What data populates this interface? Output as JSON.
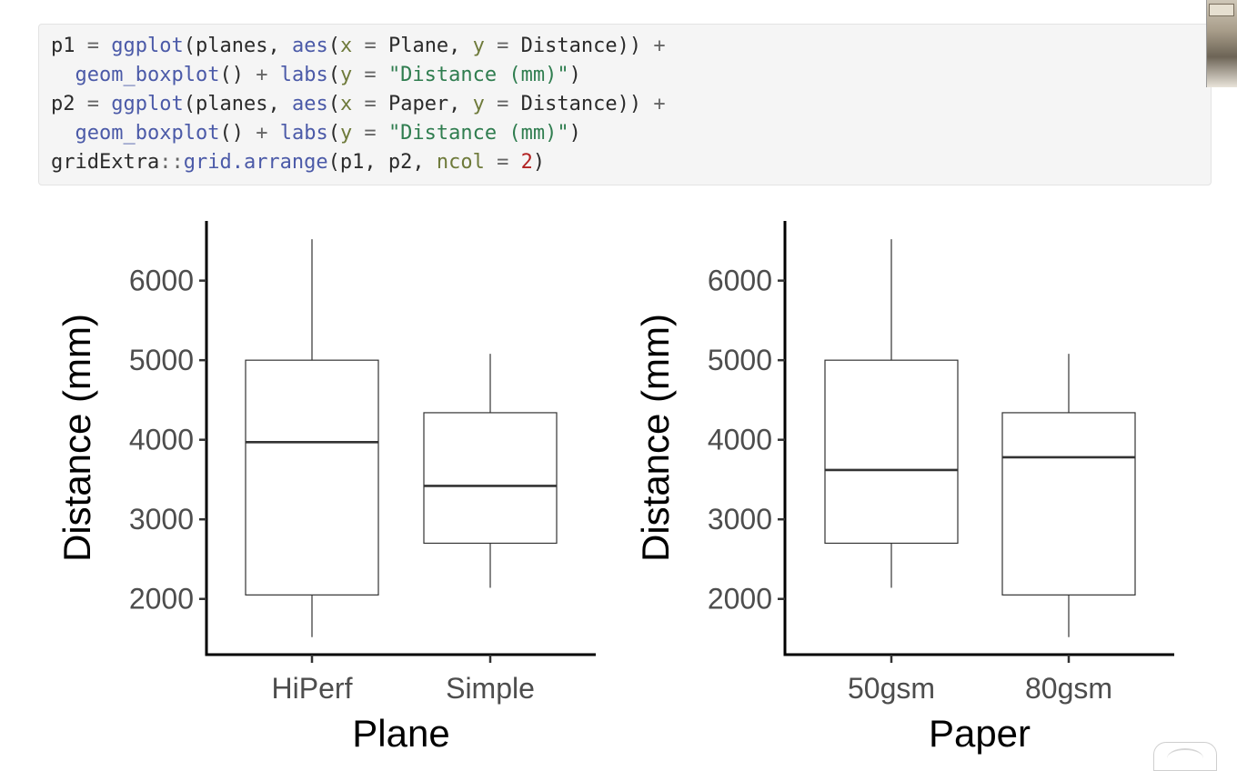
{
  "code": {
    "lines": [
      [
        {
          "t": "p1",
          "c": "plain"
        },
        {
          "t": " = ",
          "c": "op"
        },
        {
          "t": "ggplot",
          "c": "fn"
        },
        {
          "t": "(planes, ",
          "c": "plain"
        },
        {
          "t": "aes",
          "c": "fn"
        },
        {
          "t": "(",
          "c": "plain"
        },
        {
          "t": "x",
          "c": "arg"
        },
        {
          "t": " = ",
          "c": "op"
        },
        {
          "t": "Plane, ",
          "c": "plain"
        },
        {
          "t": "y",
          "c": "arg"
        },
        {
          "t": " = ",
          "c": "op"
        },
        {
          "t": "Distance)) ",
          "c": "plain"
        },
        {
          "t": "+",
          "c": "op"
        }
      ],
      [
        {
          "t": "  ",
          "c": "plain"
        },
        {
          "t": "geom_boxplot",
          "c": "fn"
        },
        {
          "t": "() ",
          "c": "plain"
        },
        {
          "t": "+",
          "c": "op"
        },
        {
          "t": " ",
          "c": "plain"
        },
        {
          "t": "labs",
          "c": "fn"
        },
        {
          "t": "(",
          "c": "plain"
        },
        {
          "t": "y",
          "c": "arg"
        },
        {
          "t": " = ",
          "c": "op"
        },
        {
          "t": "\"Distance (mm)\"",
          "c": "str"
        },
        {
          "t": ")",
          "c": "plain"
        }
      ],
      [
        {
          "t": "p2",
          "c": "plain"
        },
        {
          "t": " = ",
          "c": "op"
        },
        {
          "t": "ggplot",
          "c": "fn"
        },
        {
          "t": "(planes, ",
          "c": "plain"
        },
        {
          "t": "aes",
          "c": "fn"
        },
        {
          "t": "(",
          "c": "plain"
        },
        {
          "t": "x",
          "c": "arg"
        },
        {
          "t": " = ",
          "c": "op"
        },
        {
          "t": "Paper, ",
          "c": "plain"
        },
        {
          "t": "y",
          "c": "arg"
        },
        {
          "t": " = ",
          "c": "op"
        },
        {
          "t": "Distance)) ",
          "c": "plain"
        },
        {
          "t": "+",
          "c": "op"
        }
      ],
      [
        {
          "t": "  ",
          "c": "plain"
        },
        {
          "t": "geom_boxplot",
          "c": "fn"
        },
        {
          "t": "() ",
          "c": "plain"
        },
        {
          "t": "+",
          "c": "op"
        },
        {
          "t": " ",
          "c": "plain"
        },
        {
          "t": "labs",
          "c": "fn"
        },
        {
          "t": "(",
          "c": "plain"
        },
        {
          "t": "y",
          "c": "arg"
        },
        {
          "t": " = ",
          "c": "op"
        },
        {
          "t": "\"Distance (mm)\"",
          "c": "str"
        },
        {
          "t": ")",
          "c": "plain"
        }
      ],
      [
        {
          "t": "gridExtra",
          "c": "plain"
        },
        {
          "t": "::",
          "c": "op"
        },
        {
          "t": "grid.arrange",
          "c": "fn"
        },
        {
          "t": "(p1, p2, ",
          "c": "plain"
        },
        {
          "t": "ncol",
          "c": "arg"
        },
        {
          "t": " = ",
          "c": "op"
        },
        {
          "t": "2",
          "c": "num"
        },
        {
          "t": ")",
          "c": "plain"
        }
      ]
    ]
  },
  "colors": {
    "code_background": "#f5f5f5",
    "function": "#4b5aa8",
    "argument": "#6e7a3a",
    "string": "#2f7d4f",
    "number": "#b22222",
    "axis_line": "#000000",
    "box_stroke": "#333333",
    "tick_label": "#4d4d4d"
  },
  "chart_data": [
    {
      "type": "boxplot",
      "xlabel": "Plane",
      "ylabel": "Distance (mm)",
      "ylim": [
        1300,
        6750
      ],
      "yticks": [
        2000,
        3000,
        4000,
        5000,
        6000
      ],
      "grid": false,
      "categories": [
        "HiPerf",
        "Simple"
      ],
      "boxes": [
        {
          "category": "HiPerf",
          "min": 1520,
          "q1": 2050,
          "median": 3970,
          "q3": 5000,
          "max": 6520
        },
        {
          "category": "Simple",
          "min": 2140,
          "q1": 2700,
          "median": 3420,
          "q3": 4340,
          "max": 5080
        }
      ]
    },
    {
      "type": "boxplot",
      "xlabel": "Paper",
      "ylabel": "Distance (mm)",
      "ylim": [
        1300,
        6750
      ],
      "yticks": [
        2000,
        3000,
        4000,
        5000,
        6000
      ],
      "grid": false,
      "categories": [
        "50gsm",
        "80gsm"
      ],
      "boxes": [
        {
          "category": "50gsm",
          "min": 2140,
          "q1": 2700,
          "median": 3620,
          "q3": 5000,
          "max": 6520
        },
        {
          "category": "80gsm",
          "min": 1520,
          "q1": 2050,
          "median": 3780,
          "q3": 4340,
          "max": 5080
        }
      ]
    }
  ]
}
